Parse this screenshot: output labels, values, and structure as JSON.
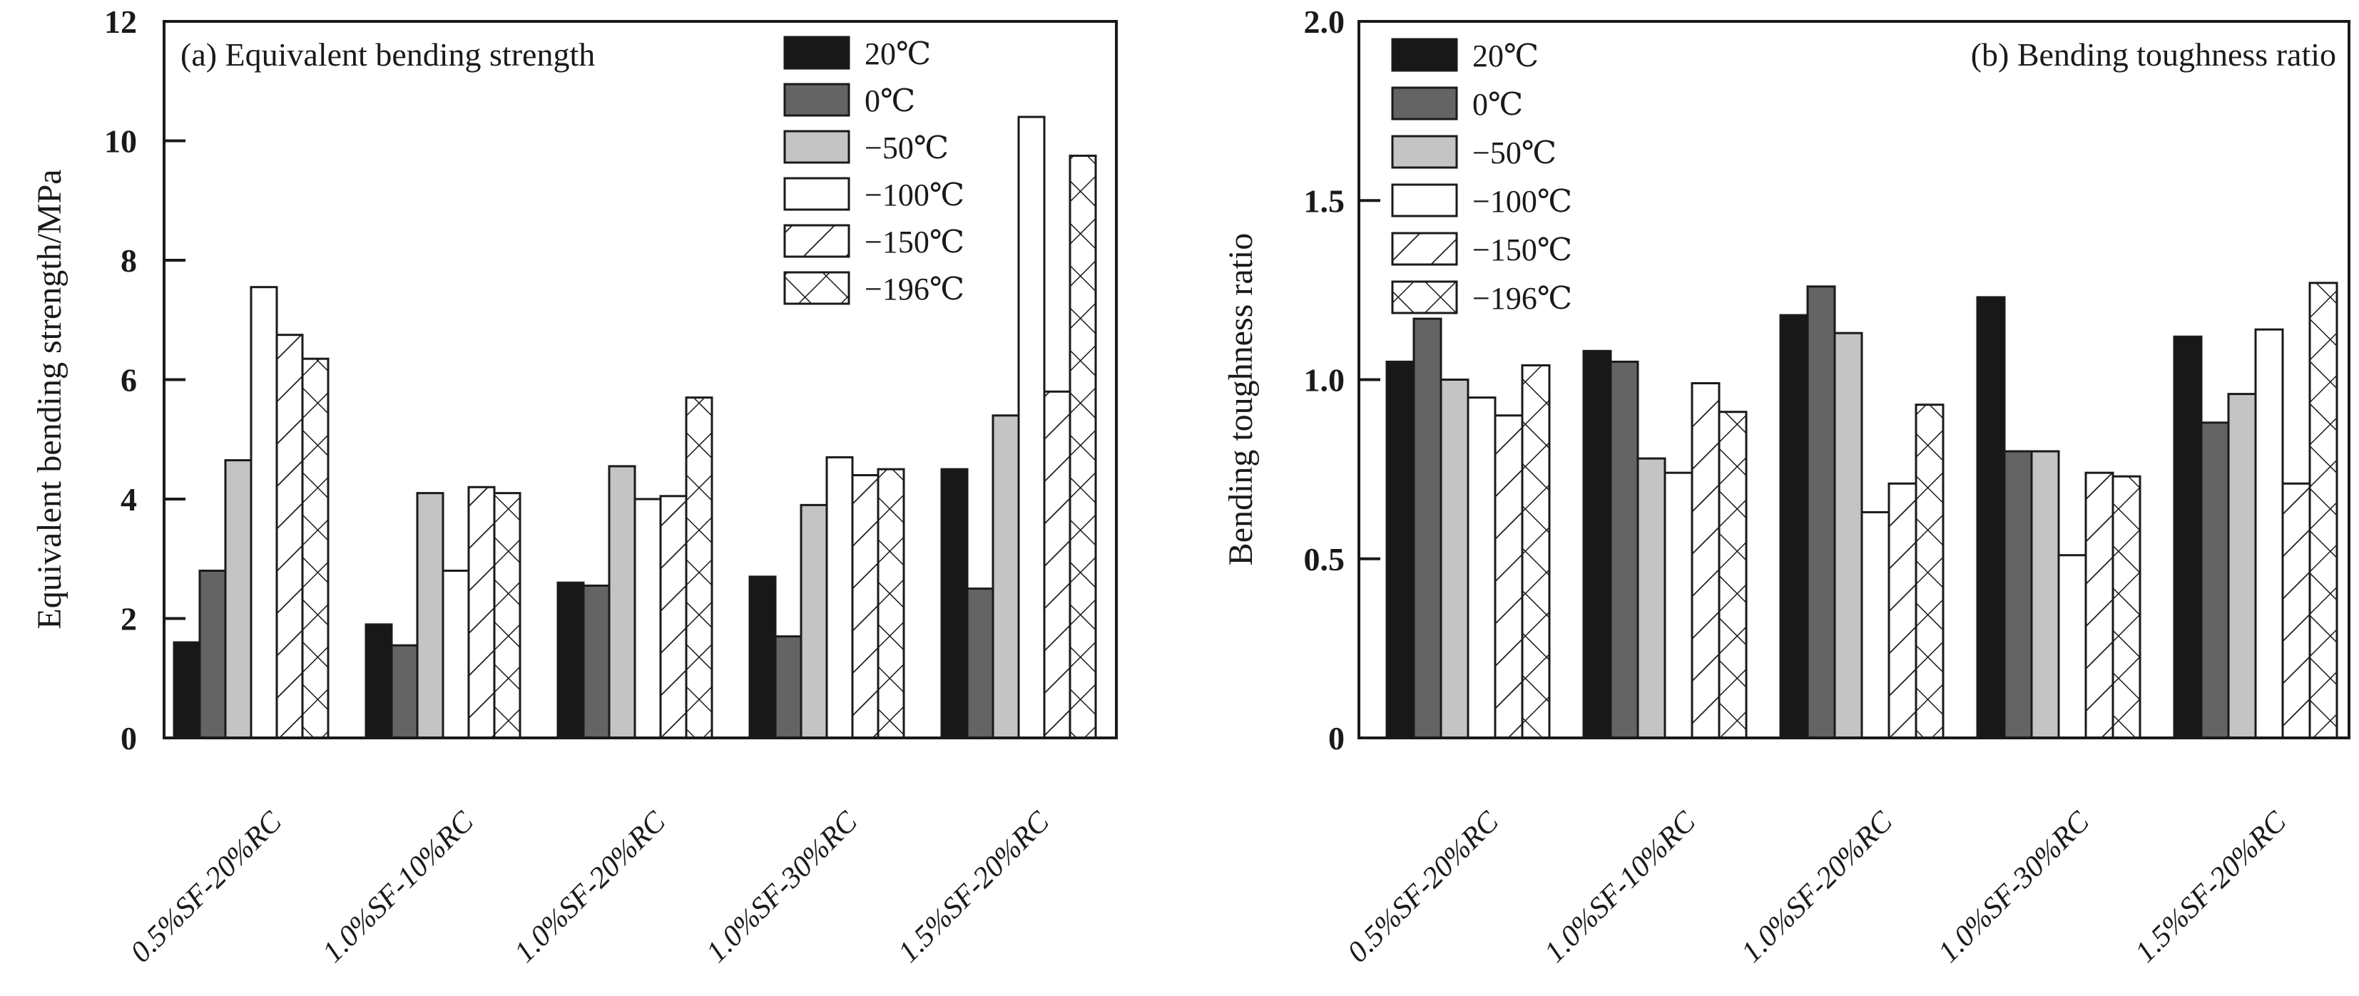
{
  "figure": {
    "panels": [
      {
        "id": "a",
        "title": "(a) Equivalent bending strength",
        "ylabel": "Equivalent bending strength/MPa"
      },
      {
        "id": "b",
        "title": "(b) Bending toughness ratio",
        "ylabel": "Bending toughness ratio"
      }
    ]
  },
  "colors": {
    "black": "#181818",
    "dark_gray": "#646464",
    "light_gray": "#c4c4c4",
    "white": "#ffffff",
    "line": "#1a1a1a",
    "background": "#ffffff"
  },
  "chart_data": [
    {
      "type": "bar",
      "panel_label": "(a) Equivalent bending strength",
      "ylabel": "Equivalent bending strength/MPa",
      "ylim": [
        0,
        12
      ],
      "yticks": [
        0,
        2,
        4,
        6,
        8,
        10,
        12
      ],
      "ytick_labels": [
        "0",
        "2",
        "4",
        "6",
        "8",
        "10",
        "12"
      ],
      "grid": false,
      "legend_position": "upper-inside-left-of-center",
      "categories": [
        "0.5%SF-20%RC",
        "1.0%SF-10%RC",
        "1.0%SF-20%RC",
        "1.0%SF-30%RC",
        "1.5%SF-20%RC"
      ],
      "series": [
        {
          "name": "20℃",
          "pattern": "solid-black",
          "values": [
            1.6,
            1.9,
            2.6,
            2.7,
            4.5
          ]
        },
        {
          "name": "0℃",
          "pattern": "solid-dark-gray",
          "values": [
            2.8,
            1.55,
            2.55,
            1.7,
            2.5
          ]
        },
        {
          "name": "−50℃",
          "pattern": "solid-light-gray",
          "values": [
            4.65,
            4.1,
            4.55,
            3.9,
            5.4
          ]
        },
        {
          "name": "−100℃",
          "pattern": "solid-white",
          "values": [
            7.55,
            2.8,
            4.0,
            4.7,
            10.4
          ]
        },
        {
          "name": "−150℃",
          "pattern": "diagonal-hatch",
          "values": [
            6.75,
            4.2,
            4.05,
            4.4,
            5.8
          ]
        },
        {
          "name": "−196℃",
          "pattern": "cross-hatch",
          "values": [
            6.35,
            4.1,
            5.7,
            4.5,
            9.75
          ]
        }
      ]
    },
    {
      "type": "bar",
      "panel_label": "(b) Bending toughness ratio",
      "ylabel": "Bending toughness ratio",
      "ylim": [
        0,
        2
      ],
      "yticks": [
        0,
        0.5,
        1.0,
        1.5,
        2.0
      ],
      "ytick_labels": [
        "0",
        "0.5",
        "1.0",
        "1.5",
        "2.0"
      ],
      "grid": false,
      "legend_position": "upper-left-inside",
      "categories": [
        "0.5%SF-20%RC",
        "1.0%SF-10%RC",
        "1.0%SF-20%RC",
        "1.0%SF-30%RC",
        "1.5%SF-20%RC"
      ],
      "series": [
        {
          "name": "20℃",
          "pattern": "solid-black",
          "values": [
            1.05,
            1.08,
            1.18,
            1.23,
            1.12
          ]
        },
        {
          "name": "0℃",
          "pattern": "solid-dark-gray",
          "values": [
            1.17,
            1.05,
            1.26,
            0.8,
            0.88
          ]
        },
        {
          "name": "−50℃",
          "pattern": "solid-light-gray",
          "values": [
            1.0,
            0.78,
            1.13,
            0.8,
            0.96
          ]
        },
        {
          "name": "−100℃",
          "pattern": "solid-white",
          "values": [
            0.95,
            0.74,
            0.63,
            0.51,
            1.14
          ]
        },
        {
          "name": "−150℃",
          "pattern": "diagonal-hatch",
          "values": [
            0.9,
            0.99,
            0.71,
            0.74,
            0.71
          ]
        },
        {
          "name": "−196℃",
          "pattern": "cross-hatch",
          "values": [
            1.04,
            0.91,
            0.93,
            0.73,
            1.27
          ]
        }
      ]
    }
  ]
}
